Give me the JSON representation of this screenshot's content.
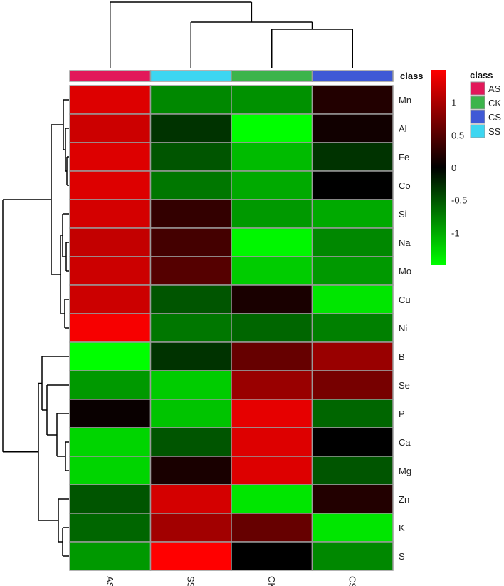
{
  "chart_data": {
    "type": "heatmap",
    "columns": [
      "AS",
      "SS",
      "CK",
      "CS"
    ],
    "rows": [
      "Mn",
      "Al",
      "Fe",
      "Co",
      "Si",
      "Na",
      "Mo",
      "Cu",
      "Ni",
      "B",
      "Se",
      "P",
      "Ca",
      "Mg",
      "Zn",
      "K",
      "S"
    ],
    "values": [
      [
        1.3,
        -0.8,
        -0.85,
        0.2
      ],
      [
        1.2,
        -0.3,
        -1.5,
        0.1
      ],
      [
        1.3,
        -0.5,
        -1.1,
        -0.3
      ],
      [
        1.3,
        -0.7,
        -1.0,
        0.0
      ],
      [
        1.25,
        0.3,
        -0.9,
        -1.0
      ],
      [
        1.15,
        0.4,
        -1.45,
        -0.8
      ],
      [
        1.2,
        0.5,
        -1.2,
        -0.9
      ],
      [
        1.2,
        -0.5,
        0.15,
        -1.35
      ],
      [
        1.45,
        -0.7,
        -0.6,
        -0.75
      ],
      [
        -1.5,
        -0.3,
        0.6,
        0.9
      ],
      [
        -0.9,
        -1.2,
        0.9,
        0.7
      ],
      [
        0.05,
        -1.15,
        1.35,
        -0.6
      ],
      [
        -1.25,
        -0.5,
        1.3,
        0.0
      ],
      [
        -1.25,
        0.15,
        1.3,
        -0.5
      ],
      [
        -0.5,
        1.25,
        -1.35,
        0.2
      ],
      [
        -0.6,
        0.95,
        0.6,
        -1.35
      ],
      [
        -0.9,
        1.5,
        0.0,
        -0.8
      ]
    ],
    "column_annotation": {
      "title": "class",
      "values": [
        "AS",
        "SS",
        "CK",
        "CS"
      ]
    },
    "annotation_legend": {
      "title": "class",
      "entries": [
        {
          "label": "AS",
          "color": "#e2185a"
        },
        {
          "label": "CK",
          "color": "#3cb44b"
        },
        {
          "label": "CS",
          "color": "#3f59d6"
        },
        {
          "label": "SS",
          "color": "#3dd6f1"
        }
      ]
    },
    "color_scale": {
      "low": "#00ff00",
      "mid": "#000000",
      "high": "#ff0000",
      "range": [
        -1.5,
        1.5
      ],
      "ticks": [
        1,
        0.5,
        0,
        -0.5,
        -1
      ],
      "tick_labels": [
        "1",
        "0.5",
        "0",
        "-0.5",
        "-1"
      ]
    },
    "column_dendrogram": "AS | ((SS) (CK, CS))",
    "row_dendrogram": "upper cluster: Mn..Ni; lower cluster: B..S",
    "grid": true,
    "legend_placement": "right"
  }
}
